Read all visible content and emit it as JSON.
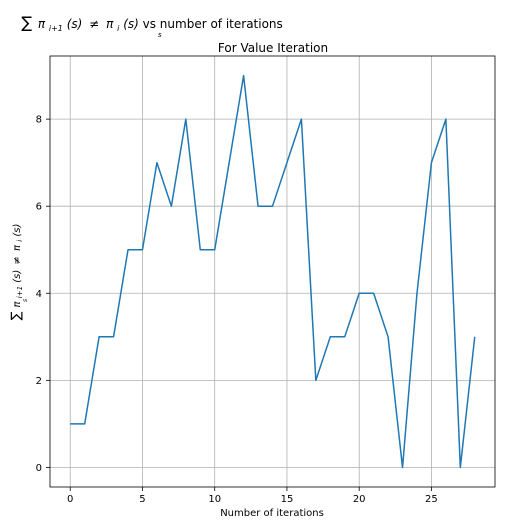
{
  "chart_data": {
    "type": "line",
    "title_math": {
      "sum": "∑",
      "sum_sub": "s",
      "pi": "π",
      "sub_next": "i+1",
      "sub_cur": "i",
      "arg": "(s)",
      "neq": "≠",
      "rest": " vs number of iterations"
    },
    "subtitle": "For Value Iteration",
    "xlabel": "Number of iterations",
    "ylabel_math": {
      "sum": "∑",
      "sum_sub": "s",
      "pi": "π",
      "sub_next": "i+1",
      "sub_cur": "i",
      "arg": "(s)",
      "neq": "≠"
    },
    "xlim": [
      -1.4,
      29.4
    ],
    "ylim": [
      -0.45,
      9.45
    ],
    "xticks": [
      0,
      5,
      10,
      15,
      20,
      25
    ],
    "yticks": [
      0,
      2,
      4,
      6,
      8
    ],
    "grid": true,
    "series": [
      {
        "color": "#1f77b4",
        "x": [
          0,
          1,
          2,
          3,
          4,
          5,
          6,
          7,
          8,
          9,
          10,
          11,
          12,
          13,
          14,
          15,
          16,
          17,
          18,
          19,
          20,
          21,
          22,
          23,
          24,
          25,
          26,
          27,
          28
        ],
        "y": [
          1,
          1,
          3,
          3,
          5,
          5,
          7,
          6,
          8,
          5,
          5,
          7,
          9,
          6,
          6,
          7,
          8,
          2,
          3,
          3,
          4,
          4,
          3,
          0,
          4,
          7,
          8,
          0,
          3
        ]
      }
    ]
  }
}
